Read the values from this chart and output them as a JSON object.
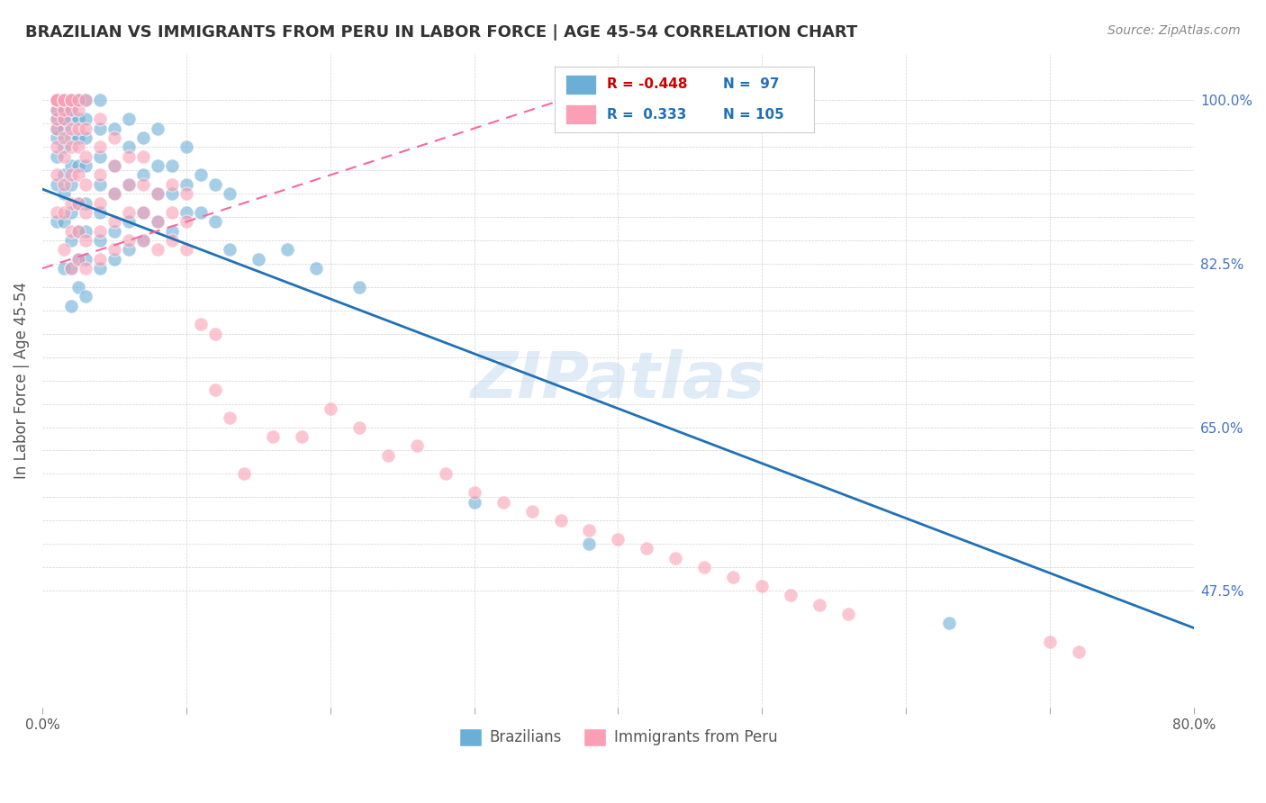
{
  "title": "BRAZILIAN VS IMMIGRANTS FROM PERU IN LABOR FORCE | AGE 45-54 CORRELATION CHART",
  "source": "Source: ZipAtlas.com",
  "ylabel": "In Labor Force | Age 45-54",
  "xlim": [
    0.0,
    0.8
  ],
  "ylim": [
    0.35,
    1.05
  ],
  "watermark": "ZIPatlas",
  "legend_blue_R": "-0.448",
  "legend_blue_N": "97",
  "legend_pink_R": "0.333",
  "legend_pink_N": "105",
  "blue_color": "#6baed6",
  "pink_color": "#fa9fb5",
  "blue_line_color": "#2171b5",
  "pink_line_color": "#f768a1",
  "background_color": "#ffffff",
  "grid_color": "#d0d0d0",
  "brazil_x": [
    0.01,
    0.01,
    0.01,
    0.01,
    0.01,
    0.01,
    0.01,
    0.01,
    0.01,
    0.01,
    0.015,
    0.015,
    0.015,
    0.015,
    0.015,
    0.015,
    0.015,
    0.015,
    0.015,
    0.015,
    0.02,
    0.02,
    0.02,
    0.02,
    0.02,
    0.02,
    0.02,
    0.02,
    0.02,
    0.02,
    0.02,
    0.025,
    0.025,
    0.025,
    0.025,
    0.025,
    0.025,
    0.025,
    0.025,
    0.025,
    0.03,
    0.03,
    0.03,
    0.03,
    0.03,
    0.03,
    0.03,
    0.03,
    0.04,
    0.04,
    0.04,
    0.04,
    0.04,
    0.04,
    0.04,
    0.05,
    0.05,
    0.05,
    0.05,
    0.05,
    0.06,
    0.06,
    0.06,
    0.06,
    0.06,
    0.07,
    0.07,
    0.07,
    0.07,
    0.08,
    0.08,
    0.08,
    0.08,
    0.09,
    0.09,
    0.09,
    0.1,
    0.1,
    0.1,
    0.11,
    0.11,
    0.12,
    0.12,
    0.13,
    0.13,
    0.15,
    0.17,
    0.19,
    0.22,
    0.3,
    0.38,
    0.63
  ],
  "brazil_y": [
    0.87,
    0.91,
    0.94,
    0.96,
    0.97,
    0.98,
    0.99,
    1.0,
    1.0,
    1.0,
    0.82,
    0.87,
    0.9,
    0.92,
    0.95,
    0.97,
    0.98,
    0.99,
    1.0,
    1.0,
    0.78,
    0.82,
    0.85,
    0.88,
    0.91,
    0.93,
    0.96,
    0.98,
    0.99,
    1.0,
    1.0,
    0.8,
    0.83,
    0.86,
    0.89,
    0.93,
    0.96,
    0.98,
    1.0,
    1.0,
    0.79,
    0.83,
    0.86,
    0.89,
    0.93,
    0.96,
    0.98,
    1.0,
    0.82,
    0.85,
    0.88,
    0.91,
    0.94,
    0.97,
    1.0,
    0.83,
    0.86,
    0.9,
    0.93,
    0.97,
    0.84,
    0.87,
    0.91,
    0.95,
    0.98,
    0.85,
    0.88,
    0.92,
    0.96,
    0.87,
    0.9,
    0.93,
    0.97,
    0.86,
    0.9,
    0.93,
    0.88,
    0.91,
    0.95,
    0.88,
    0.92,
    0.87,
    0.91,
    0.84,
    0.9,
    0.83,
    0.84,
    0.82,
    0.8,
    0.57,
    0.525,
    0.44
  ],
  "peru_x": [
    0.01,
    0.01,
    0.01,
    0.01,
    0.01,
    0.01,
    0.01,
    0.01,
    0.01,
    0.01,
    0.015,
    0.015,
    0.015,
    0.015,
    0.015,
    0.015,
    0.015,
    0.015,
    0.015,
    0.015,
    0.02,
    0.02,
    0.02,
    0.02,
    0.02,
    0.02,
    0.02,
    0.02,
    0.02,
    0.02,
    0.025,
    0.025,
    0.025,
    0.025,
    0.025,
    0.025,
    0.025,
    0.025,
    0.03,
    0.03,
    0.03,
    0.03,
    0.03,
    0.03,
    0.03,
    0.04,
    0.04,
    0.04,
    0.04,
    0.04,
    0.04,
    0.05,
    0.05,
    0.05,
    0.05,
    0.05,
    0.06,
    0.06,
    0.06,
    0.06,
    0.07,
    0.07,
    0.07,
    0.07,
    0.08,
    0.08,
    0.08,
    0.09,
    0.09,
    0.09,
    0.1,
    0.1,
    0.1,
    0.11,
    0.12,
    0.12,
    0.13,
    0.14,
    0.16,
    0.18,
    0.2,
    0.22,
    0.24,
    0.26,
    0.28,
    0.3,
    0.32,
    0.34,
    0.36,
    0.38,
    0.4,
    0.42,
    0.44,
    0.46,
    0.48,
    0.5,
    0.52,
    0.54,
    0.56,
    0.7,
    0.72
  ],
  "peru_y": [
    0.88,
    0.92,
    0.95,
    0.97,
    0.98,
    0.99,
    1.0,
    1.0,
    1.0,
    1.0,
    0.84,
    0.88,
    0.91,
    0.94,
    0.96,
    0.98,
    0.99,
    1.0,
    1.0,
    1.0,
    0.82,
    0.86,
    0.89,
    0.92,
    0.95,
    0.97,
    0.99,
    1.0,
    1.0,
    1.0,
    0.83,
    0.86,
    0.89,
    0.92,
    0.95,
    0.97,
    0.99,
    1.0,
    0.82,
    0.85,
    0.88,
    0.91,
    0.94,
    0.97,
    1.0,
    0.83,
    0.86,
    0.89,
    0.92,
    0.95,
    0.98,
    0.84,
    0.87,
    0.9,
    0.93,
    0.96,
    0.85,
    0.88,
    0.91,
    0.94,
    0.85,
    0.88,
    0.91,
    0.94,
    0.84,
    0.87,
    0.9,
    0.85,
    0.88,
    0.91,
    0.84,
    0.87,
    0.9,
    0.76,
    0.75,
    0.69,
    0.66,
    0.6,
    0.64,
    0.64,
    0.67,
    0.65,
    0.62,
    0.63,
    0.6,
    0.58,
    0.57,
    0.56,
    0.55,
    0.54,
    0.53,
    0.52,
    0.51,
    0.5,
    0.49,
    0.48,
    0.47,
    0.46,
    0.45,
    0.42,
    0.41
  ]
}
